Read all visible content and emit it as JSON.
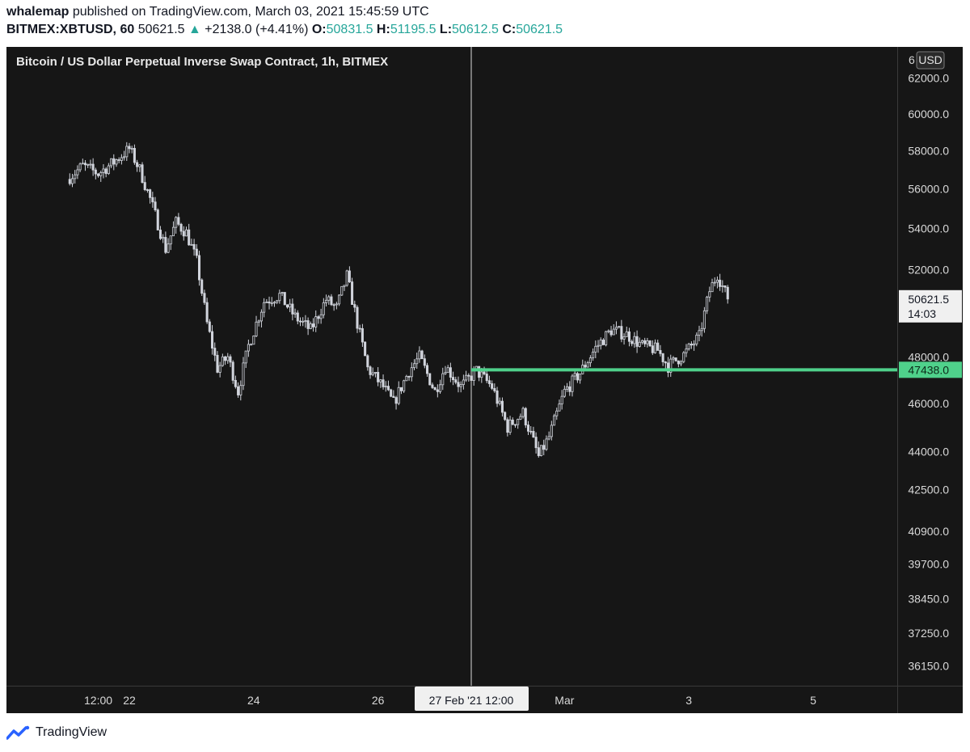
{
  "header": {
    "author": "whalemap",
    "published_text": "published on TradingView.com, March 03, 2021 15:45:59 UTC",
    "symbol": "BITMEX:XBTUSD, 60",
    "last": "50621.5",
    "change_arrow": "▲",
    "change": "+2138.0 (+4.41%)",
    "o_label": "O:",
    "o_value": "50831.5",
    "h_label": "H:",
    "h_value": "51195.5",
    "l_label": "L:",
    "l_value": "50612.5",
    "c_label": "C:",
    "c_value": "50621.5"
  },
  "colors": {
    "background": "#161616",
    "candle": "#d1d4dc",
    "support_line": "#4fd18b",
    "header_up": "#26a69a",
    "crosshair": "#d9d9d9"
  },
  "chart_data": {
    "type": "candlestick",
    "title": "Bitcoin / US Dollar Perpetual Inverse Swap Contract, 1h, BITMEX",
    "currency": "USD",
    "y_scale": "log",
    "ylim": [
      35500,
      63800
    ],
    "y_ticks": [
      "62000.0",
      "60000.0",
      "58000.0",
      "56000.0",
      "54000.0",
      "52000.0",
      "48000.0",
      "46000.0",
      "44000.0",
      "42500.0",
      "40900.0",
      "39700.0",
      "38450.0",
      "37250.0",
      "36150.0"
    ],
    "x_ticks": [
      "12:00",
      "22",
      "24",
      "26",
      "Mar",
      "3",
      "5"
    ],
    "crosshair_label": "27 Feb '21   12:00",
    "price_label": {
      "value": "50621.5",
      "countdown": "14:03"
    },
    "support_level": {
      "value": 47438.0,
      "label": "47438.0"
    },
    "grid": false,
    "close_path": [
      [
        "21 Feb 00:00",
        56500
      ],
      [
        "21 Feb 06:00",
        57200
      ],
      [
        "21 Feb 12:00",
        56800
      ],
      [
        "21 Feb 18:00",
        57400
      ],
      [
        "22 Feb 00:00",
        58100
      ],
      [
        "22 Feb 04:00",
        57000
      ],
      [
        "22 Feb 08:00",
        55500
      ],
      [
        "22 Feb 14:00",
        53000
      ],
      [
        "22 Feb 18:00",
        54300
      ],
      [
        "22 Feb 22:00",
        53800
      ],
      [
        "23 Feb 02:00",
        52400
      ],
      [
        "23 Feb 06:00",
        49500
      ],
      [
        "23 Feb 10:00",
        47500
      ],
      [
        "23 Feb 14:00",
        48000
      ],
      [
        "23 Feb 18:00",
        46500
      ],
      [
        "23 Feb 22:00",
        48500
      ],
      [
        "24 Feb 04:00",
        50500
      ],
      [
        "24 Feb 10:00",
        50800
      ],
      [
        "24 Feb 16:00",
        49800
      ],
      [
        "24 Feb 22:00",
        49200
      ],
      [
        "25 Feb 04:00",
        50600
      ],
      [
        "25 Feb 08:00",
        50200
      ],
      [
        "25 Feb 12:00",
        51700
      ],
      [
        "25 Feb 16:00",
        49500
      ],
      [
        "25 Feb 20:00",
        47500
      ],
      [
        "26 Feb 02:00",
        46700
      ],
      [
        "26 Feb 06:00",
        46000
      ],
      [
        "26 Feb 12:00",
        47400
      ],
      [
        "26 Feb 16:00",
        48000
      ],
      [
        "26 Feb 22:00",
        46500
      ],
      [
        "27 Feb 02:00",
        47600
      ],
      [
        "27 Feb 08:00",
        46700
      ],
      [
        "27 Feb 14:00",
        47400
      ],
      [
        "27 Feb 20:00",
        46700
      ],
      [
        "28 Feb 02:00",
        45000
      ],
      [
        "28 Feb 08:00",
        45600
      ],
      [
        "28 Feb 14:00",
        43800
      ],
      [
        "28 Feb 18:00",
        44600
      ],
      [
        "01 Mar 00:00",
        46500
      ],
      [
        "01 Mar 06:00",
        47300
      ],
      [
        "01 Mar 12:00",
        48400
      ],
      [
        "01 Mar 18:00",
        49200
      ],
      [
        "02 Mar 00:00",
        49000
      ],
      [
        "02 Mar 06:00",
        48500
      ],
      [
        "02 Mar 12:00",
        48300
      ],
      [
        "02 Mar 16:00",
        47600
      ],
      [
        "02 Mar 22:00",
        48100
      ],
      [
        "03 Mar 04:00",
        48900
      ],
      [
        "03 Mar 08:00",
        51000
      ],
      [
        "03 Mar 11:00",
        51800
      ],
      [
        "03 Mar 15:00",
        50621.5
      ]
    ]
  },
  "footer": {
    "brand": "TradingView"
  }
}
